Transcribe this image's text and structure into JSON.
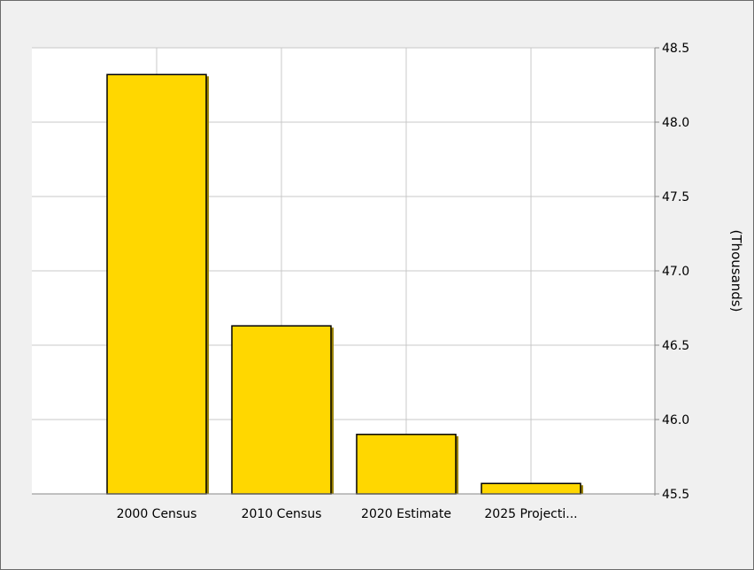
{
  "chart_data": {
    "type": "bar",
    "categories": [
      "2000 Census",
      "2010 Census",
      "2020 Estimate",
      "2025 Projecti..."
    ],
    "values": [
      48.32,
      46.63,
      45.9,
      45.57
    ],
    "ylabel": "(Thousands)",
    "ylim": [
      45.5,
      48.5
    ],
    "yticks": [
      "45.5",
      "46.0",
      "46.5",
      "47.0",
      "47.5",
      "48.0",
      "48.5"
    ],
    "y_axis_side": "right",
    "grid": true,
    "legend": "none",
    "colors": {
      "bar_fill": "#ffd700",
      "bar_stroke": "#000000",
      "bar_shadow": "#9a8200",
      "plot_background": "#ffffff",
      "page_background": "#f0f0f0",
      "grid": "#c8c8c8"
    }
  }
}
